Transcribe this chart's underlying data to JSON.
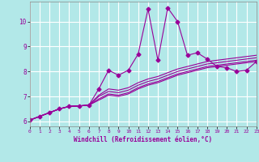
{
  "title": "",
  "xlabel": "Windchill (Refroidissement éolien,°C)",
  "background_color": "#b2e8e8",
  "grid_color": "#ffffff",
  "line_color": "#990099",
  "xlim": [
    0,
    23
  ],
  "ylim": [
    5.8,
    10.8
  ],
  "xticks": [
    0,
    1,
    2,
    3,
    4,
    5,
    6,
    7,
    8,
    9,
    10,
    11,
    12,
    13,
    14,
    15,
    16,
    17,
    18,
    19,
    20,
    21,
    22,
    23
  ],
  "yticks": [
    6,
    7,
    8,
    9,
    10
  ],
  "series": [
    [
      6.05,
      6.2,
      6.35,
      6.5,
      6.6,
      6.62,
      6.65,
      7.3,
      8.05,
      7.85,
      8.05,
      8.7,
      10.5,
      8.45,
      10.55,
      10.0,
      8.65,
      8.75,
      8.5,
      8.2,
      8.15,
      8.0,
      8.05,
      8.4
    ],
    [
      6.05,
      6.2,
      6.35,
      6.5,
      6.6,
      6.62,
      6.65,
      7.05,
      7.3,
      7.25,
      7.35,
      7.55,
      7.7,
      7.8,
      7.95,
      8.1,
      8.2,
      8.3,
      8.4,
      8.45,
      8.5,
      8.55,
      8.6,
      8.65
    ],
    [
      6.05,
      6.2,
      6.35,
      6.5,
      6.6,
      6.62,
      6.65,
      7.0,
      7.2,
      7.15,
      7.25,
      7.45,
      7.6,
      7.7,
      7.85,
      8.0,
      8.1,
      8.2,
      8.3,
      8.35,
      8.4,
      8.45,
      8.5,
      8.55
    ],
    [
      6.05,
      6.2,
      6.35,
      6.5,
      6.6,
      6.62,
      6.65,
      6.9,
      7.1,
      7.05,
      7.15,
      7.35,
      7.5,
      7.6,
      7.75,
      7.9,
      8.0,
      8.1,
      8.2,
      8.25,
      8.3,
      8.35,
      8.4,
      8.45
    ],
    [
      6.05,
      6.2,
      6.35,
      6.5,
      6.6,
      6.62,
      6.65,
      6.85,
      7.05,
      7.0,
      7.1,
      7.3,
      7.45,
      7.55,
      7.7,
      7.85,
      7.95,
      8.05,
      8.15,
      8.2,
      8.25,
      8.3,
      8.35,
      8.4
    ]
  ],
  "series_markers": [
    true,
    false,
    false,
    false,
    false
  ],
  "marker": "D",
  "marker_size": 2.5,
  "linewidth": 0.8
}
